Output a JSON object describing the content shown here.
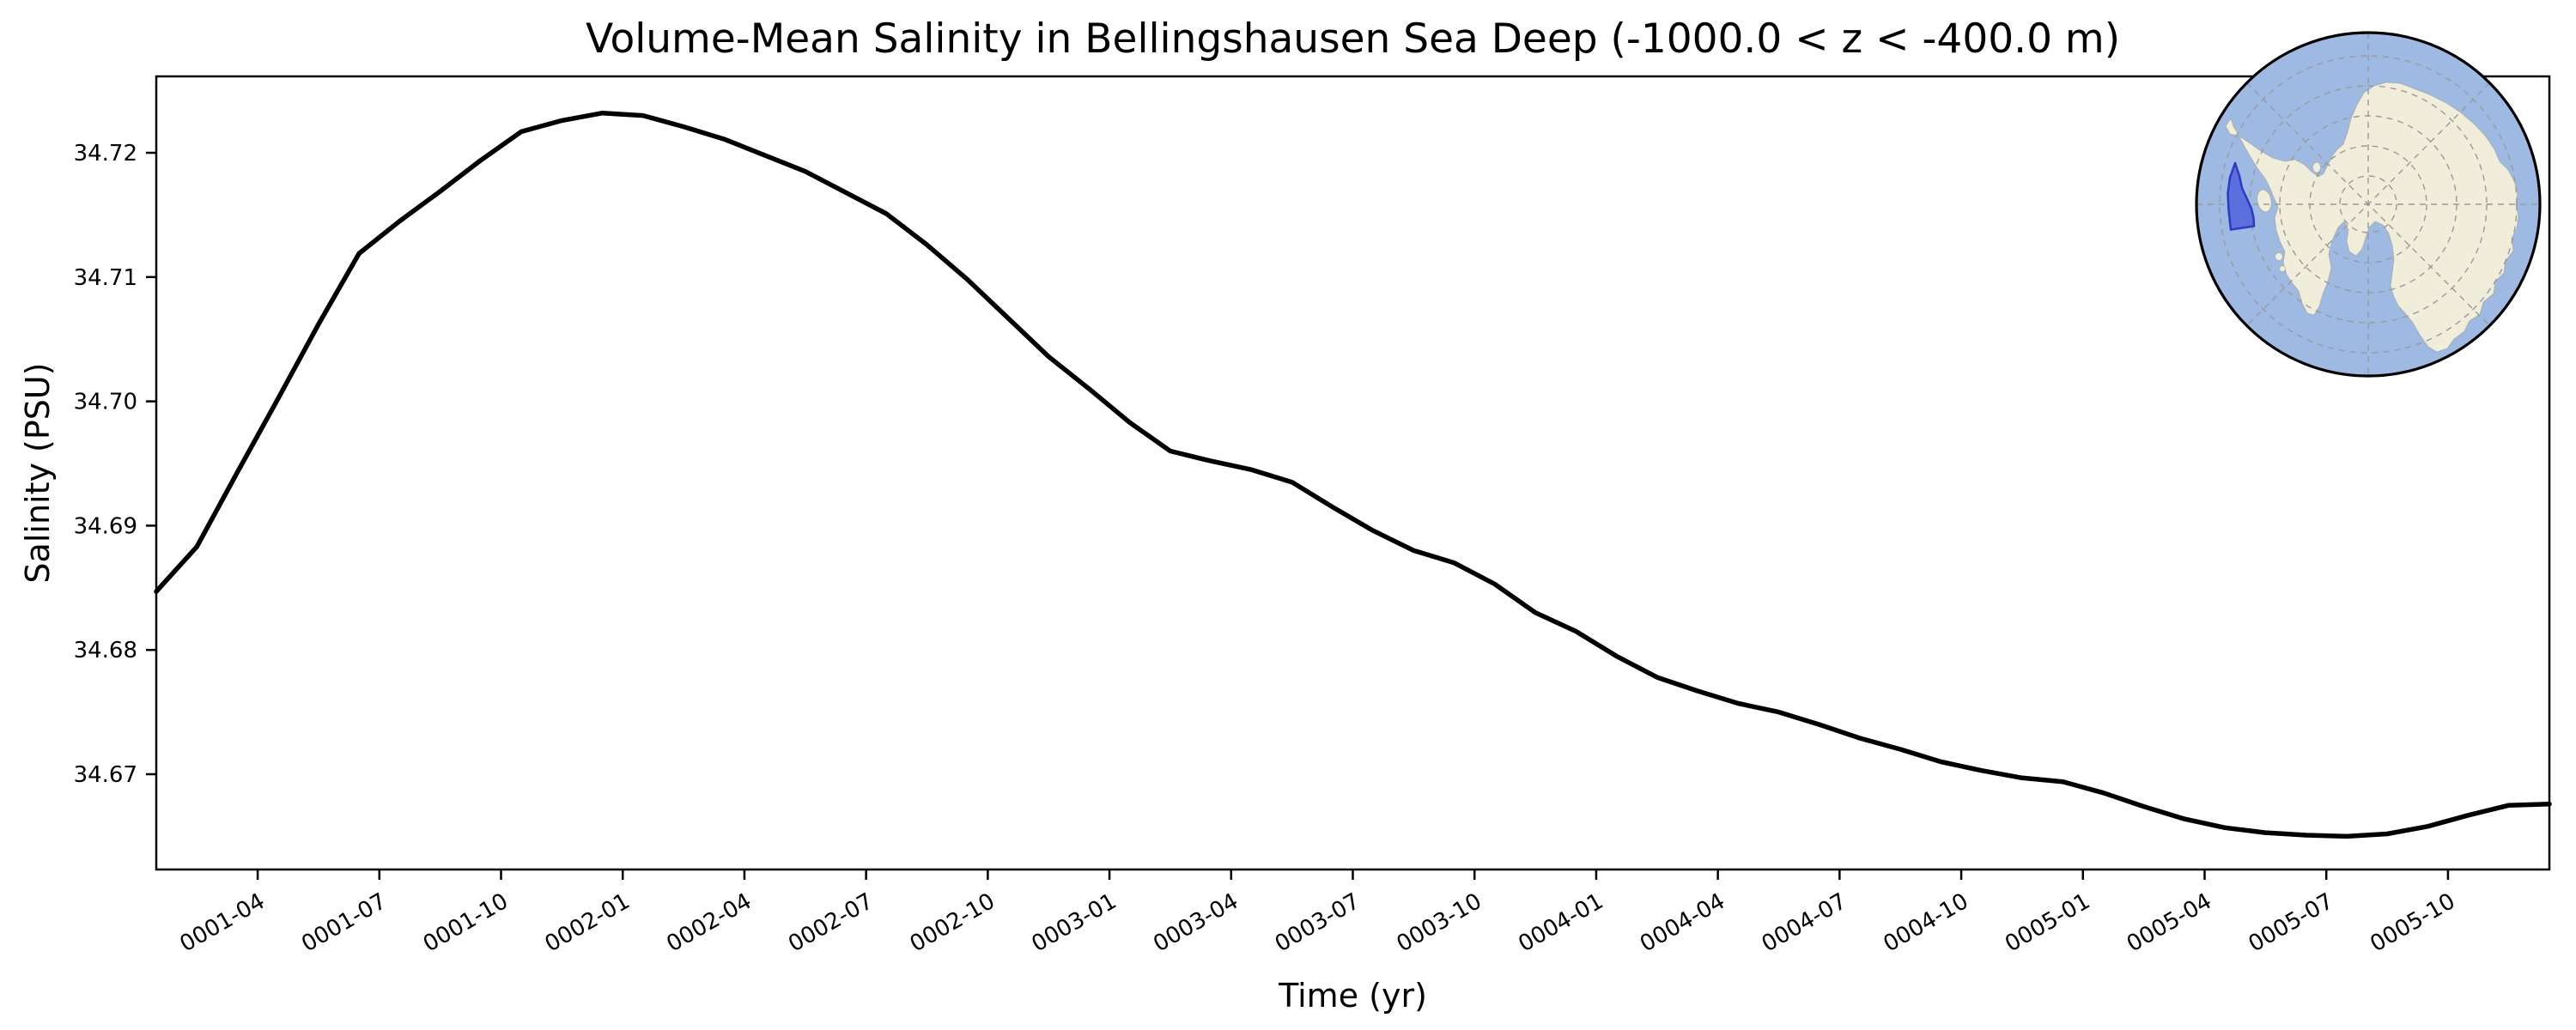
{
  "title": "Volume-Mean Salinity in Bellingshausen Sea Deep (-1000.0 < z < -400.0 m)",
  "axes": {
    "xlabel": "Time (yr)",
    "ylabel": "Salinity (PSU)",
    "y_tick_labels": [
      "34.72",
      "34.71",
      "34.70",
      "34.69",
      "34.68",
      "34.67"
    ],
    "x_tick_labels": [
      "0001-04",
      "0001-07",
      "0001-10",
      "0002-01",
      "0002-04",
      "0002-07",
      "0002-10",
      "0003-01",
      "0003-04",
      "0003-07",
      "0003-10",
      "0004-01",
      "0004-04",
      "0004-07",
      "0004-10",
      "0005-01",
      "0005-04",
      "0005-07",
      "0005-10"
    ]
  },
  "chart_data": {
    "type": "line",
    "title": "Volume-Mean Salinity in Bellingshausen Sea Deep (-1000.0 < z < -400.0 m)",
    "xlabel": "Time (yr)",
    "ylabel": "Salinity (PSU)",
    "grid": false,
    "legend": null,
    "ylim": [
      34.6623,
      34.7262
    ],
    "xlim": [
      "0001-01",
      "0005-12"
    ],
    "x": [
      "0001-01",
      "0001-02",
      "0001-03",
      "0001-04",
      "0001-05",
      "0001-06",
      "0001-07",
      "0001-08",
      "0001-09",
      "0001-10",
      "0001-11",
      "0001-12",
      "0002-01",
      "0002-02",
      "0002-03",
      "0002-04",
      "0002-05",
      "0002-06",
      "0002-07",
      "0002-08",
      "0002-09",
      "0002-10",
      "0002-11",
      "0002-12",
      "0003-01",
      "0003-02",
      "0003-03",
      "0003-04",
      "0003-05",
      "0003-06",
      "0003-07",
      "0003-08",
      "0003-09",
      "0003-10",
      "0003-11",
      "0003-12",
      "0004-01",
      "0004-02",
      "0004-03",
      "0004-04",
      "0004-05",
      "0004-06",
      "0004-07",
      "0004-08",
      "0004-09",
      "0004-10",
      "0004-11",
      "0004-12",
      "0005-01",
      "0005-02",
      "0005-03",
      "0005-04",
      "0005-05",
      "0005-06",
      "0005-07",
      "0005-08",
      "0005-09",
      "0005-10",
      "0005-11",
      "0005-12"
    ],
    "series": [
      {
        "name": "volume-mean salinity",
        "color": "#000000",
        "values": [
          34.6847,
          34.6883,
          34.6943,
          34.7002,
          34.7062,
          34.7119,
          34.7145,
          34.7169,
          34.7194,
          34.7217,
          34.7226,
          34.7232,
          34.723,
          34.7221,
          34.7211,
          34.7198,
          34.7185,
          34.7168,
          34.7151,
          34.7126,
          34.7098,
          34.7067,
          34.7036,
          34.701,
          34.6983,
          34.696,
          34.6952,
          34.6945,
          34.6935,
          34.6915,
          34.6896,
          34.688,
          34.687,
          34.6853,
          34.683,
          34.6815,
          34.6795,
          34.6778,
          34.6767,
          34.6757,
          34.675,
          34.674,
          34.6729,
          34.672,
          34.671,
          34.6703,
          34.6697,
          34.6694,
          34.6685,
          34.6674,
          34.6664,
          34.6657,
          34.6653,
          34.6651,
          34.665,
          34.6652,
          34.6658,
          34.6667,
          34.6675,
          34.6676
        ]
      }
    ]
  },
  "inset_map": {
    "ocean_color": "#9fbae2",
    "land_color": "#f0eedb",
    "land_edge_color": "#8f8d78",
    "graticule_color": "#999999",
    "boundary_color": "#000000",
    "region_fill": "#4f63da",
    "region_stroke": "#2c3cc4"
  }
}
